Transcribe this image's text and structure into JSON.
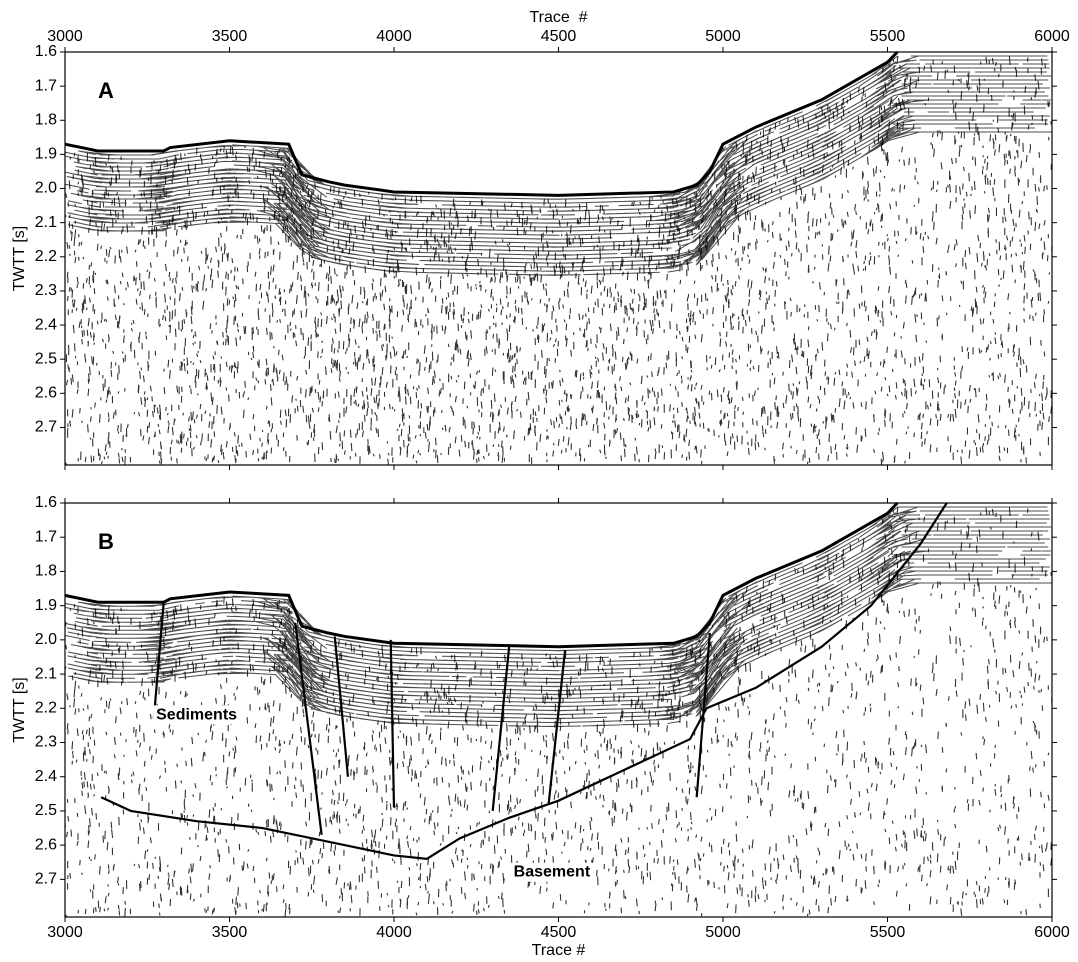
{
  "chart_data": [
    {
      "type": "seismic-section",
      "label": "A",
      "xlabel": "Trace  #",
      "ylabel": "TWTT [s]",
      "xaxis_position": "top",
      "xlim": [
        3000,
        6000
      ],
      "ylim": [
        1.6,
        2.81
      ],
      "y_inverted": true,
      "xticks": [
        3000,
        3500,
        4000,
        4500,
        5000,
        5500,
        6000
      ],
      "yticks": [
        1.6,
        1.7,
        1.8,
        1.9,
        {
          "value": 2,
          "label": "2.0"
        },
        2.1,
        2.2,
        2.3,
        2.4,
        2.5,
        2.6,
        2.7
      ],
      "seafloor": {
        "x": [
          3000,
          3050,
          3100,
          3300,
          3320,
          3500,
          3680,
          3720,
          3800,
          3850,
          4000,
          4500,
          4850,
          4920,
          4960,
          5000,
          5100,
          5300,
          5500,
          5530
        ],
        "y": [
          1.87,
          1.88,
          1.89,
          1.89,
          1.88,
          1.86,
          1.87,
          1.96,
          1.98,
          1.99,
          2.01,
          2.02,
          2.01,
          1.99,
          1.95,
          1.87,
          1.82,
          1.74,
          1.63,
          1.6
        ]
      },
      "lines": [],
      "annotations": []
    },
    {
      "type": "seismic-section",
      "label": "B",
      "xlabel": "Trace #",
      "ylabel": "TWTT [s]",
      "xaxis_position": "bottom",
      "xlim": [
        3000,
        6000
      ],
      "ylim": [
        1.6,
        2.81
      ],
      "y_inverted": true,
      "xticks": [
        3000,
        3500,
        4000,
        4500,
        5000,
        5500,
        6000
      ],
      "yticks": [
        1.6,
        1.7,
        1.8,
        1.9,
        {
          "value": 2,
          "label": "2.0"
        },
        2.1,
        2.2,
        2.3,
        2.4,
        2.5,
        2.6,
        2.7
      ],
      "seafloor": {
        "x": [
          3000,
          3050,
          3100,
          3300,
          3320,
          3500,
          3680,
          3720,
          3800,
          3850,
          4000,
          4500,
          4850,
          4920,
          4960,
          5000,
          5100,
          5300,
          5500,
          5530
        ],
        "y": [
          1.87,
          1.88,
          1.89,
          1.89,
          1.88,
          1.86,
          1.87,
          1.96,
          1.98,
          1.99,
          2.01,
          2.02,
          2.01,
          1.99,
          1.95,
          1.87,
          1.82,
          1.74,
          1.63,
          1.6
        ]
      },
      "lines": [
        {
          "x": [
            3110,
            3200,
            3400,
            3600,
            3800,
            4000,
            4100,
            4200,
            4350,
            4500,
            4700,
            4900,
            4950,
            5100,
            5300,
            5450,
            5600,
            5680
          ],
          "y": [
            2.46,
            2.5,
            2.53,
            2.55,
            2.59,
            2.63,
            2.64,
            2.58,
            2.52,
            2.47,
            2.38,
            2.29,
            2.2,
            2.14,
            2.02,
            1.9,
            1.72,
            1.6
          ]
        },
        {
          "x": [
            3300,
            3270
          ],
          "y": [
            1.89,
            2.23
          ]
        },
        {
          "x": [
            3700,
            3780
          ],
          "y": [
            1.95,
            2.57
          ]
        },
        {
          "x": [
            3820,
            3860
          ],
          "y": [
            1.99,
            2.4
          ]
        },
        {
          "x": [
            3990,
            4000
          ],
          "y": [
            2.0,
            2.49
          ]
        },
        {
          "x": [
            4350,
            4300
          ],
          "y": [
            2.02,
            2.5
          ]
        },
        {
          "x": [
            4520,
            4470
          ],
          "y": [
            2.03,
            2.48
          ]
        },
        {
          "x": [
            4960,
            4920
          ],
          "y": [
            1.98,
            2.46
          ]
        }
      ],
      "annotations": [
        "Sediments",
        "Basement"
      ]
    }
  ]
}
